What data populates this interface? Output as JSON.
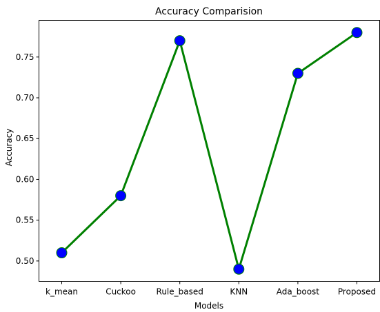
{
  "chart_data": {
    "type": "line",
    "title": "Accuracy Comparision",
    "xlabel": "Models",
    "ylabel": "Accuracy",
    "categories": [
      "k_mean",
      "Cuckoo",
      "Rule_based",
      "KNN",
      "Ada_boost",
      "Proposed"
    ],
    "series": [
      {
        "values": [
          0.51,
          0.58,
          0.77,
          0.49,
          0.73,
          0.78
        ]
      }
    ],
    "ylim": [
      0.475,
      0.795
    ],
    "yticks": [
      "0.50",
      "0.55",
      "0.60",
      "0.65",
      "0.70",
      "0.75"
    ],
    "ytick_values": [
      0.5,
      0.55,
      0.6,
      0.65,
      0.7,
      0.75
    ],
    "grid": false,
    "line_color": "#008000",
    "marker_color": "#0000ff",
    "marker_edge_color": "#008000"
  }
}
